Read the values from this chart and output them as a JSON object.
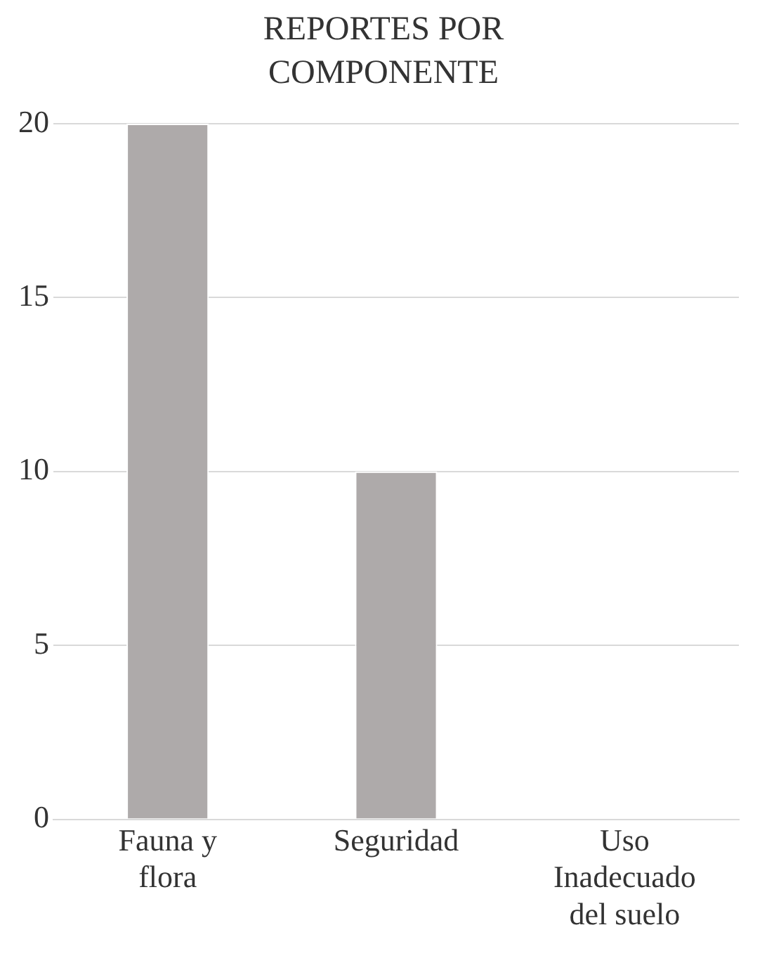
{
  "chart_data": {
    "type": "bar",
    "title": "REPORTES POR COMPONENTE",
    "categories": [
      "Fauna y flora",
      "Seguridad",
      "Uso Inadecuado del suelo"
    ],
    "values": [
      20,
      10,
      0
    ],
    "color": "#aeaaaa",
    "ylim": [
      0,
      20
    ],
    "yticks": [
      0,
      5,
      10,
      15,
      20
    ],
    "grid": "y"
  }
}
